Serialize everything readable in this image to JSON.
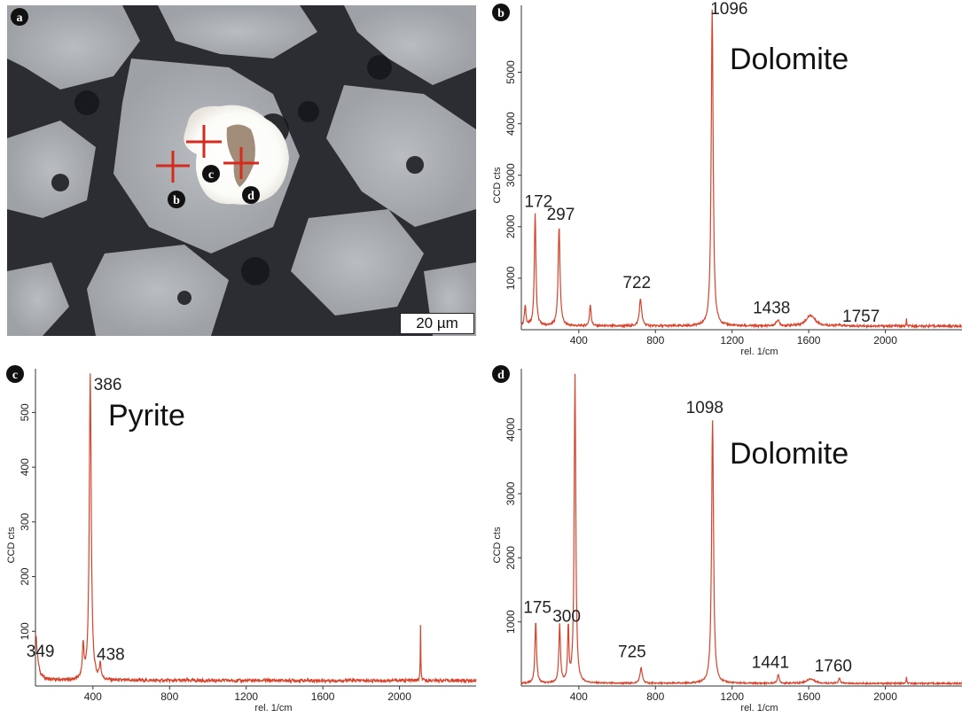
{
  "panels": {
    "a": {
      "letter": "a",
      "scale_bar": "20 µm",
      "markers": [
        "b",
        "c",
        "d"
      ]
    },
    "b": {
      "letter": "b"
    },
    "c": {
      "letter": "c"
    },
    "d": {
      "letter": "d"
    }
  },
  "colors": {
    "spectrum": "#d9432b",
    "cross": "#d62a1e",
    "badge": "#111111"
  },
  "chart_data": [
    {
      "id": "b",
      "type": "line",
      "title": "Dolomite",
      "xlabel": "rel. 1/cm",
      "ylabel": "CCD cts",
      "xlim": [
        100,
        2400
      ],
      "ylim": [
        0,
        6300
      ],
      "xticks": [
        400,
        800,
        1200,
        1600,
        2000
      ],
      "yticks": [
        1000,
        2000,
        3000,
        4000,
        5000
      ],
      "baseline": 70,
      "peaks": [
        {
          "x": 120,
          "y": 450,
          "w": 5
        },
        {
          "x": 172,
          "y": 2250,
          "w": 5
        },
        {
          "x": 297,
          "y": 2000,
          "w": 6
        },
        {
          "x": 460,
          "y": 480,
          "w": 5
        },
        {
          "x": 722,
          "y": 600,
          "w": 7
        },
        {
          "x": 1096,
          "y": 6200,
          "w": 6
        },
        {
          "x": 1438,
          "y": 180,
          "w": 10
        },
        {
          "x": 1610,
          "y": 280,
          "w": 28
        },
        {
          "x": 1757,
          "y": 90,
          "w": 8
        },
        {
          "x": 2110,
          "y": 200,
          "w": 1.5
        }
      ],
      "labels": [
        {
          "text": "172",
          "x": 172,
          "y": 2250
        },
        {
          "text": "297",
          "x": 297,
          "y": 2000
        },
        {
          "text": "722",
          "x": 722,
          "y": 600
        },
        {
          "text": "1096",
          "x": 1096,
          "y": 6200
        },
        {
          "text": "1438",
          "x": 1438,
          "y": 180
        },
        {
          "text": "1757",
          "x": 1757,
          "y": 90
        }
      ]
    },
    {
      "id": "c",
      "type": "line",
      "title": "Pyrite",
      "xlabel": "rel. 1/cm",
      "ylabel": "CCD cts",
      "xlim": [
        100,
        2400
      ],
      "ylim": [
        0,
        580
      ],
      "xticks": [
        400,
        800,
        1200,
        1600,
        2000
      ],
      "yticks": [
        100,
        200,
        300,
        400,
        500
      ],
      "baseline": 10,
      "peaks": [
        {
          "x": 100,
          "y": 95,
          "w": 12
        },
        {
          "x": 349,
          "y": 70,
          "w": 5
        },
        {
          "x": 386,
          "y": 570,
          "w": 6
        },
        {
          "x": 438,
          "y": 38,
          "w": 5
        },
        {
          "x": 2110,
          "y": 110,
          "w": 1.5
        }
      ],
      "labels": [
        {
          "text": "386",
          "x": 386,
          "y": 570
        },
        {
          "text": "349",
          "x": 349,
          "y": 70
        },
        {
          "text": "438",
          "x": 438,
          "y": 38
        }
      ]
    },
    {
      "id": "d",
      "type": "line",
      "title": "Dolomite",
      "xlabel": "rel. 1/cm",
      "ylabel": "CCD cts",
      "xlim": [
        100,
        2400
      ],
      "ylim": [
        0,
        4950
      ],
      "xticks": [
        400,
        800,
        1200,
        1600,
        2000
      ],
      "yticks": [
        1000,
        2000,
        3000,
        4000
      ],
      "baseline": 40,
      "peaks": [
        {
          "x": 175,
          "y": 1000,
          "w": 5
        },
        {
          "x": 300,
          "y": 950,
          "w": 5
        },
        {
          "x": 345,
          "y": 900,
          "w": 4
        },
        {
          "x": 380,
          "y": 4850,
          "w": 5
        },
        {
          "x": 725,
          "y": 280,
          "w": 7
        },
        {
          "x": 1098,
          "y": 4150,
          "w": 6
        },
        {
          "x": 1441,
          "y": 170,
          "w": 6
        },
        {
          "x": 1610,
          "y": 110,
          "w": 25
        },
        {
          "x": 1760,
          "y": 120,
          "w": 5
        },
        {
          "x": 2110,
          "y": 150,
          "w": 1.5
        }
      ],
      "labels": [
        {
          "text": "175",
          "x": 175,
          "y": 1000
        },
        {
          "text": "300",
          "x": 300,
          "y": 950
        },
        {
          "text": "725",
          "x": 725,
          "y": 280
        },
        {
          "text": "1098",
          "x": 1098,
          "y": 4150
        },
        {
          "text": "1441",
          "x": 1441,
          "y": 170
        },
        {
          "text": "1760",
          "x": 1760,
          "y": 120
        }
      ]
    }
  ]
}
